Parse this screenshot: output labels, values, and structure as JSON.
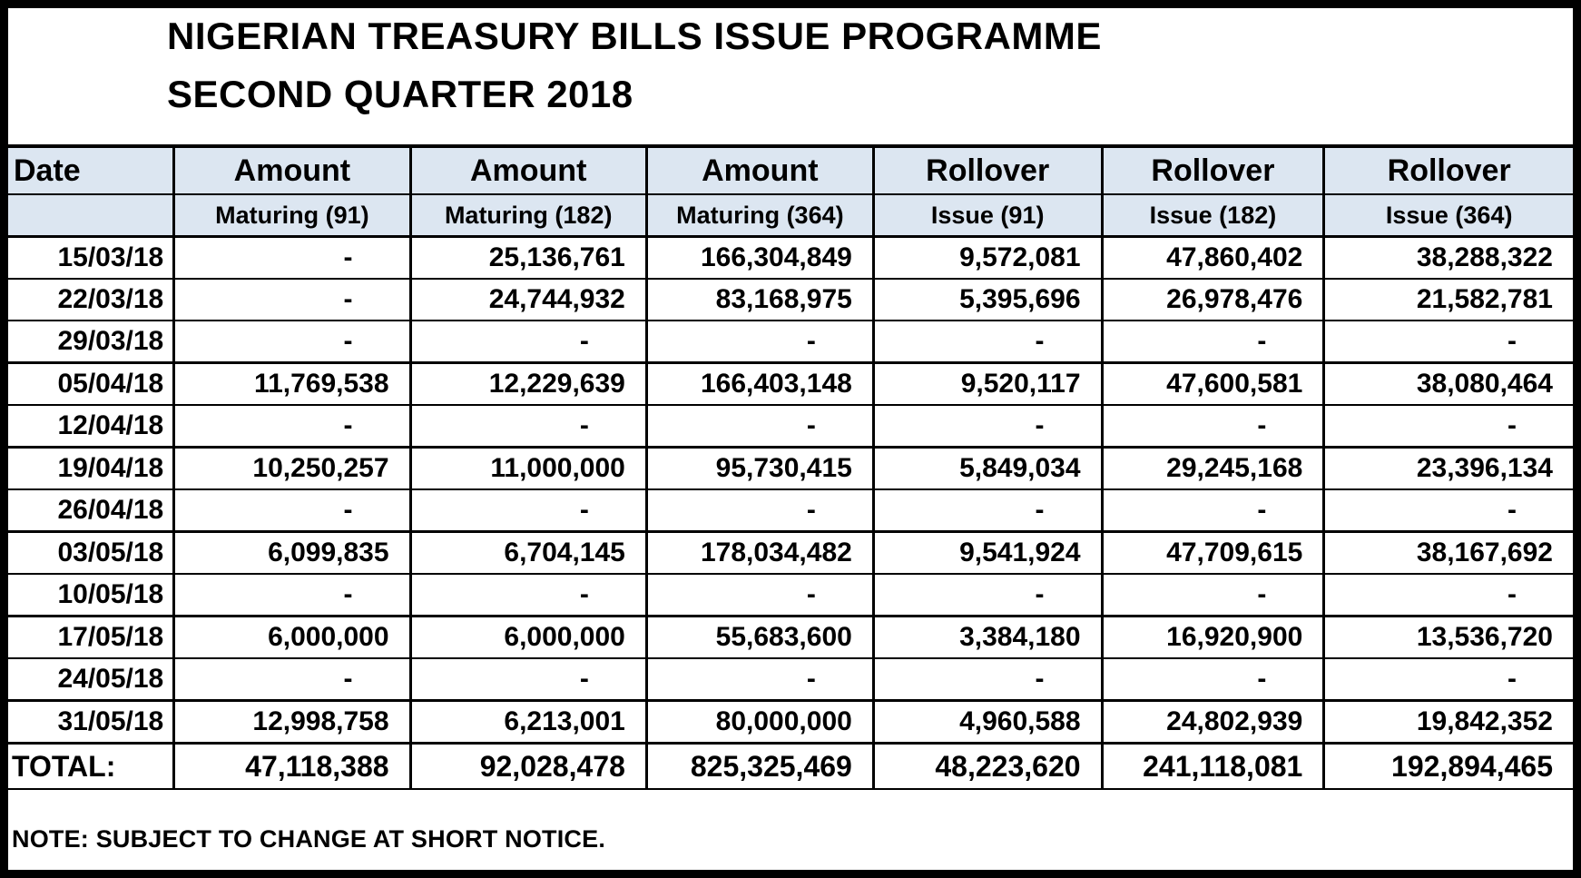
{
  "title": {
    "line1": "NIGERIAN TREASURY BILLS ISSUE PROGRAMME",
    "line2": "SECOND QUARTER 2018"
  },
  "table": {
    "header_row1": [
      "Date",
      "Amount",
      "Amount",
      "Amount",
      "Rollover",
      "Rollover",
      "Rollover"
    ],
    "header_row2": [
      "",
      "Maturing (91)",
      "Maturing (182)",
      "Maturing (364)",
      "Issue (91)",
      "Issue (182)",
      "Issue (364)"
    ],
    "rows": [
      {
        "date": "15/03/18",
        "values": [
          "-",
          "25,136,761",
          "166,304,849",
          "9,572,081",
          "47,860,402",
          "38,288,322"
        ]
      },
      {
        "date": "22/03/18",
        "values": [
          "-",
          "24,744,932",
          "83,168,975",
          "5,395,696",
          "26,978,476",
          "21,582,781"
        ]
      },
      {
        "date": "29/03/18",
        "values": [
          "-",
          "-",
          "-",
          "-",
          "-",
          "-"
        ]
      },
      {
        "date": "05/04/18",
        "values": [
          "11,769,538",
          "12,229,639",
          "166,403,148",
          "9,520,117",
          "47,600,581",
          "38,080,464"
        ]
      },
      {
        "date": "12/04/18",
        "values": [
          "-",
          "-",
          "-",
          "-",
          "-",
          "-"
        ]
      },
      {
        "date": "19/04/18",
        "values": [
          "10,250,257",
          "11,000,000",
          "95,730,415",
          "5,849,034",
          "29,245,168",
          "23,396,134"
        ]
      },
      {
        "date": "26/04/18",
        "values": [
          "-",
          "-",
          "-",
          "-",
          "-",
          "-"
        ]
      },
      {
        "date": "03/05/18",
        "values": [
          "6,099,835",
          "6,704,145",
          "178,034,482",
          "9,541,924",
          "47,709,615",
          "38,167,692"
        ]
      },
      {
        "date": "10/05/18",
        "values": [
          "-",
          "-",
          "-",
          "-",
          "-",
          "-"
        ]
      },
      {
        "date": "17/05/18",
        "values": [
          "6,000,000",
          "6,000,000",
          "55,683,600",
          "3,384,180",
          "16,920,900",
          "13,536,720"
        ]
      },
      {
        "date": "24/05/18",
        "values": [
          "-",
          "-",
          "-",
          "-",
          "-",
          "-"
        ]
      },
      {
        "date": "31/05/18",
        "values": [
          "12,998,758",
          "6,213,001",
          "80,000,000",
          "4,960,588",
          "24,802,939",
          "19,842,352"
        ]
      }
    ],
    "total": {
      "label": "TOTAL:",
      "values": [
        "47,118,388",
        "92,028,478",
        "825,325,469",
        "48,223,620",
        "241,118,081",
        "192,894,465"
      ]
    }
  },
  "note": "NOTE: SUBJECT TO CHANGE AT SHORT NOTICE.",
  "colors": {
    "header_bg": "#dce6f1",
    "border": "#000000",
    "text": "#000000",
    "page_bg": "#ffffff"
  }
}
